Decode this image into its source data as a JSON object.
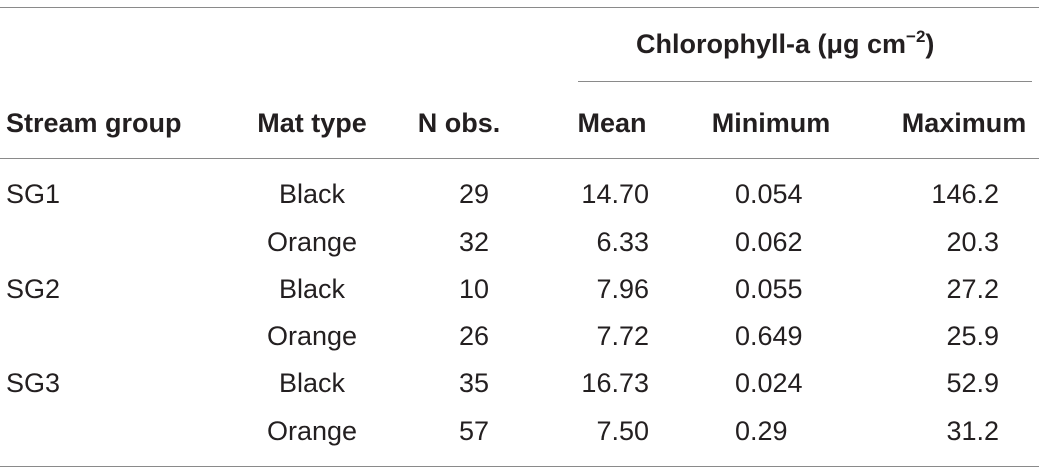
{
  "table": {
    "group_header": {
      "label": "Chlorophyll-a (μg cm",
      "exponent": "−2",
      "close": ")"
    },
    "columns": [
      "Stream group",
      "Mat type",
      "N obs.",
      "Mean",
      "Minimum",
      "Maximum"
    ],
    "rows": [
      {
        "stream_group": "SG1",
        "mat_type": "Black",
        "n_obs": "29",
        "mean": "14.70",
        "minimum": "0.054",
        "maximum": "146.2"
      },
      {
        "stream_group": "",
        "mat_type": "Orange",
        "n_obs": "32",
        "mean": "6.33",
        "minimum": "0.062",
        "maximum": "20.3"
      },
      {
        "stream_group": "SG2",
        "mat_type": "Black",
        "n_obs": "10",
        "mean": "7.96",
        "minimum": "0.055",
        "maximum": "27.2"
      },
      {
        "stream_group": "",
        "mat_type": "Orange",
        "n_obs": "26",
        "mean": "7.72",
        "minimum": "0.649",
        "maximum": "25.9"
      },
      {
        "stream_group": "SG3",
        "mat_type": "Black",
        "n_obs": "35",
        "mean": "16.73",
        "minimum": "0.024",
        "maximum": "52.9"
      },
      {
        "stream_group": "",
        "mat_type": "Orange",
        "n_obs": "57",
        "mean": "7.50",
        "minimum": "0.29",
        "maximum": "31.2"
      }
    ]
  }
}
